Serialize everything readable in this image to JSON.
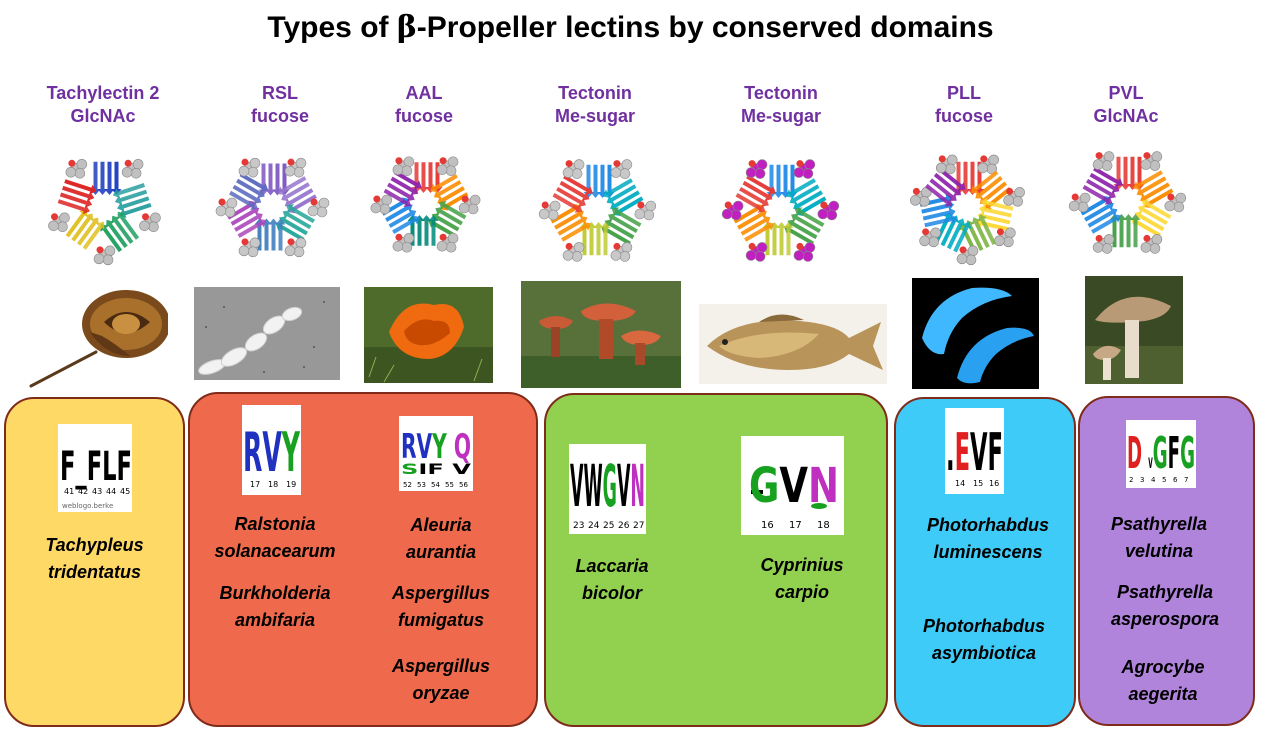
{
  "title": {
    "prefix": "Types of ",
    "beta": "β",
    "suffix": "-Propeller lectins by conserved domains"
  },
  "lectins": [
    {
      "name": "Tachylectin 2",
      "sugar": "GlcNAc"
    },
    {
      "name": "RSL",
      "sugar": "fucose"
    },
    {
      "name": "AAL",
      "sugar": "fucose"
    },
    {
      "name": "Tectonin",
      "sugar": "Me-sugar"
    },
    {
      "name": "Tectonin",
      "sugar": "Me-sugar"
    },
    {
      "name": "PLL",
      "sugar": "fucose"
    },
    {
      "name": "PVL",
      "sugar": "GlcNAc"
    }
  ],
  "groups": [
    {
      "color": "#ffd966"
    },
    {
      "color": "#ef6a4c"
    },
    {
      "color": "#92d050"
    },
    {
      "color": "#3fcbf8"
    },
    {
      "color": "#b184dc"
    }
  ],
  "logos": [
    {
      "letters": "F_FLF",
      "positions": [
        "41",
        "42",
        "43",
        "44",
        "45"
      ],
      "credit": "weblogo.berke"
    },
    {
      "letters": "RVY",
      "positions": [
        "17",
        "18",
        "19"
      ]
    },
    {
      "letters": "RVY Q",
      "sub": "SIF V",
      "positions": [
        "52",
        "53",
        "54",
        "55",
        "56"
      ]
    },
    {
      "letters": "VWGVN",
      "positions": [
        "23",
        "24",
        "25",
        "26",
        "27"
      ]
    },
    {
      "letters": "GVN",
      "positions": [
        "16",
        "17",
        "18"
      ]
    },
    {
      "letters": "EVF",
      "positions": [
        "14",
        "15",
        "16"
      ]
    },
    {
      "letters": "D VGFG",
      "positions": [
        "2",
        "3",
        "4",
        "5",
        "6",
        "7"
      ]
    }
  ],
  "species": {
    "tachypleus": [
      "Tachypleus",
      "tridentatus"
    ],
    "ralstonia": [
      "Ralstonia",
      "solanacearum"
    ],
    "burkholderia": [
      "Burkholderia",
      "ambifaria"
    ],
    "aleuria": [
      "Aleuria",
      "aurantia"
    ],
    "asp_fumigatus": [
      "Aspergillus",
      "fumigatus"
    ],
    "asp_oryzae": [
      "Aspergillus",
      "oryzae"
    ],
    "laccaria": [
      "Laccaria",
      "bicolor"
    ],
    "cyprinius": [
      "Cyprinius",
      "carpio"
    ],
    "photo_lum": [
      "Photorhabdus",
      "luminescens"
    ],
    "photo_asym": [
      "Photorhabdus",
      "asymbiotica"
    ],
    "psa_velutina": [
      "Psathyrella",
      "velutina"
    ],
    "psa_asperospora": [
      "Psathyrella",
      "asperospora"
    ],
    "agrocybe": [
      "Agrocybe",
      "aegerita"
    ]
  }
}
